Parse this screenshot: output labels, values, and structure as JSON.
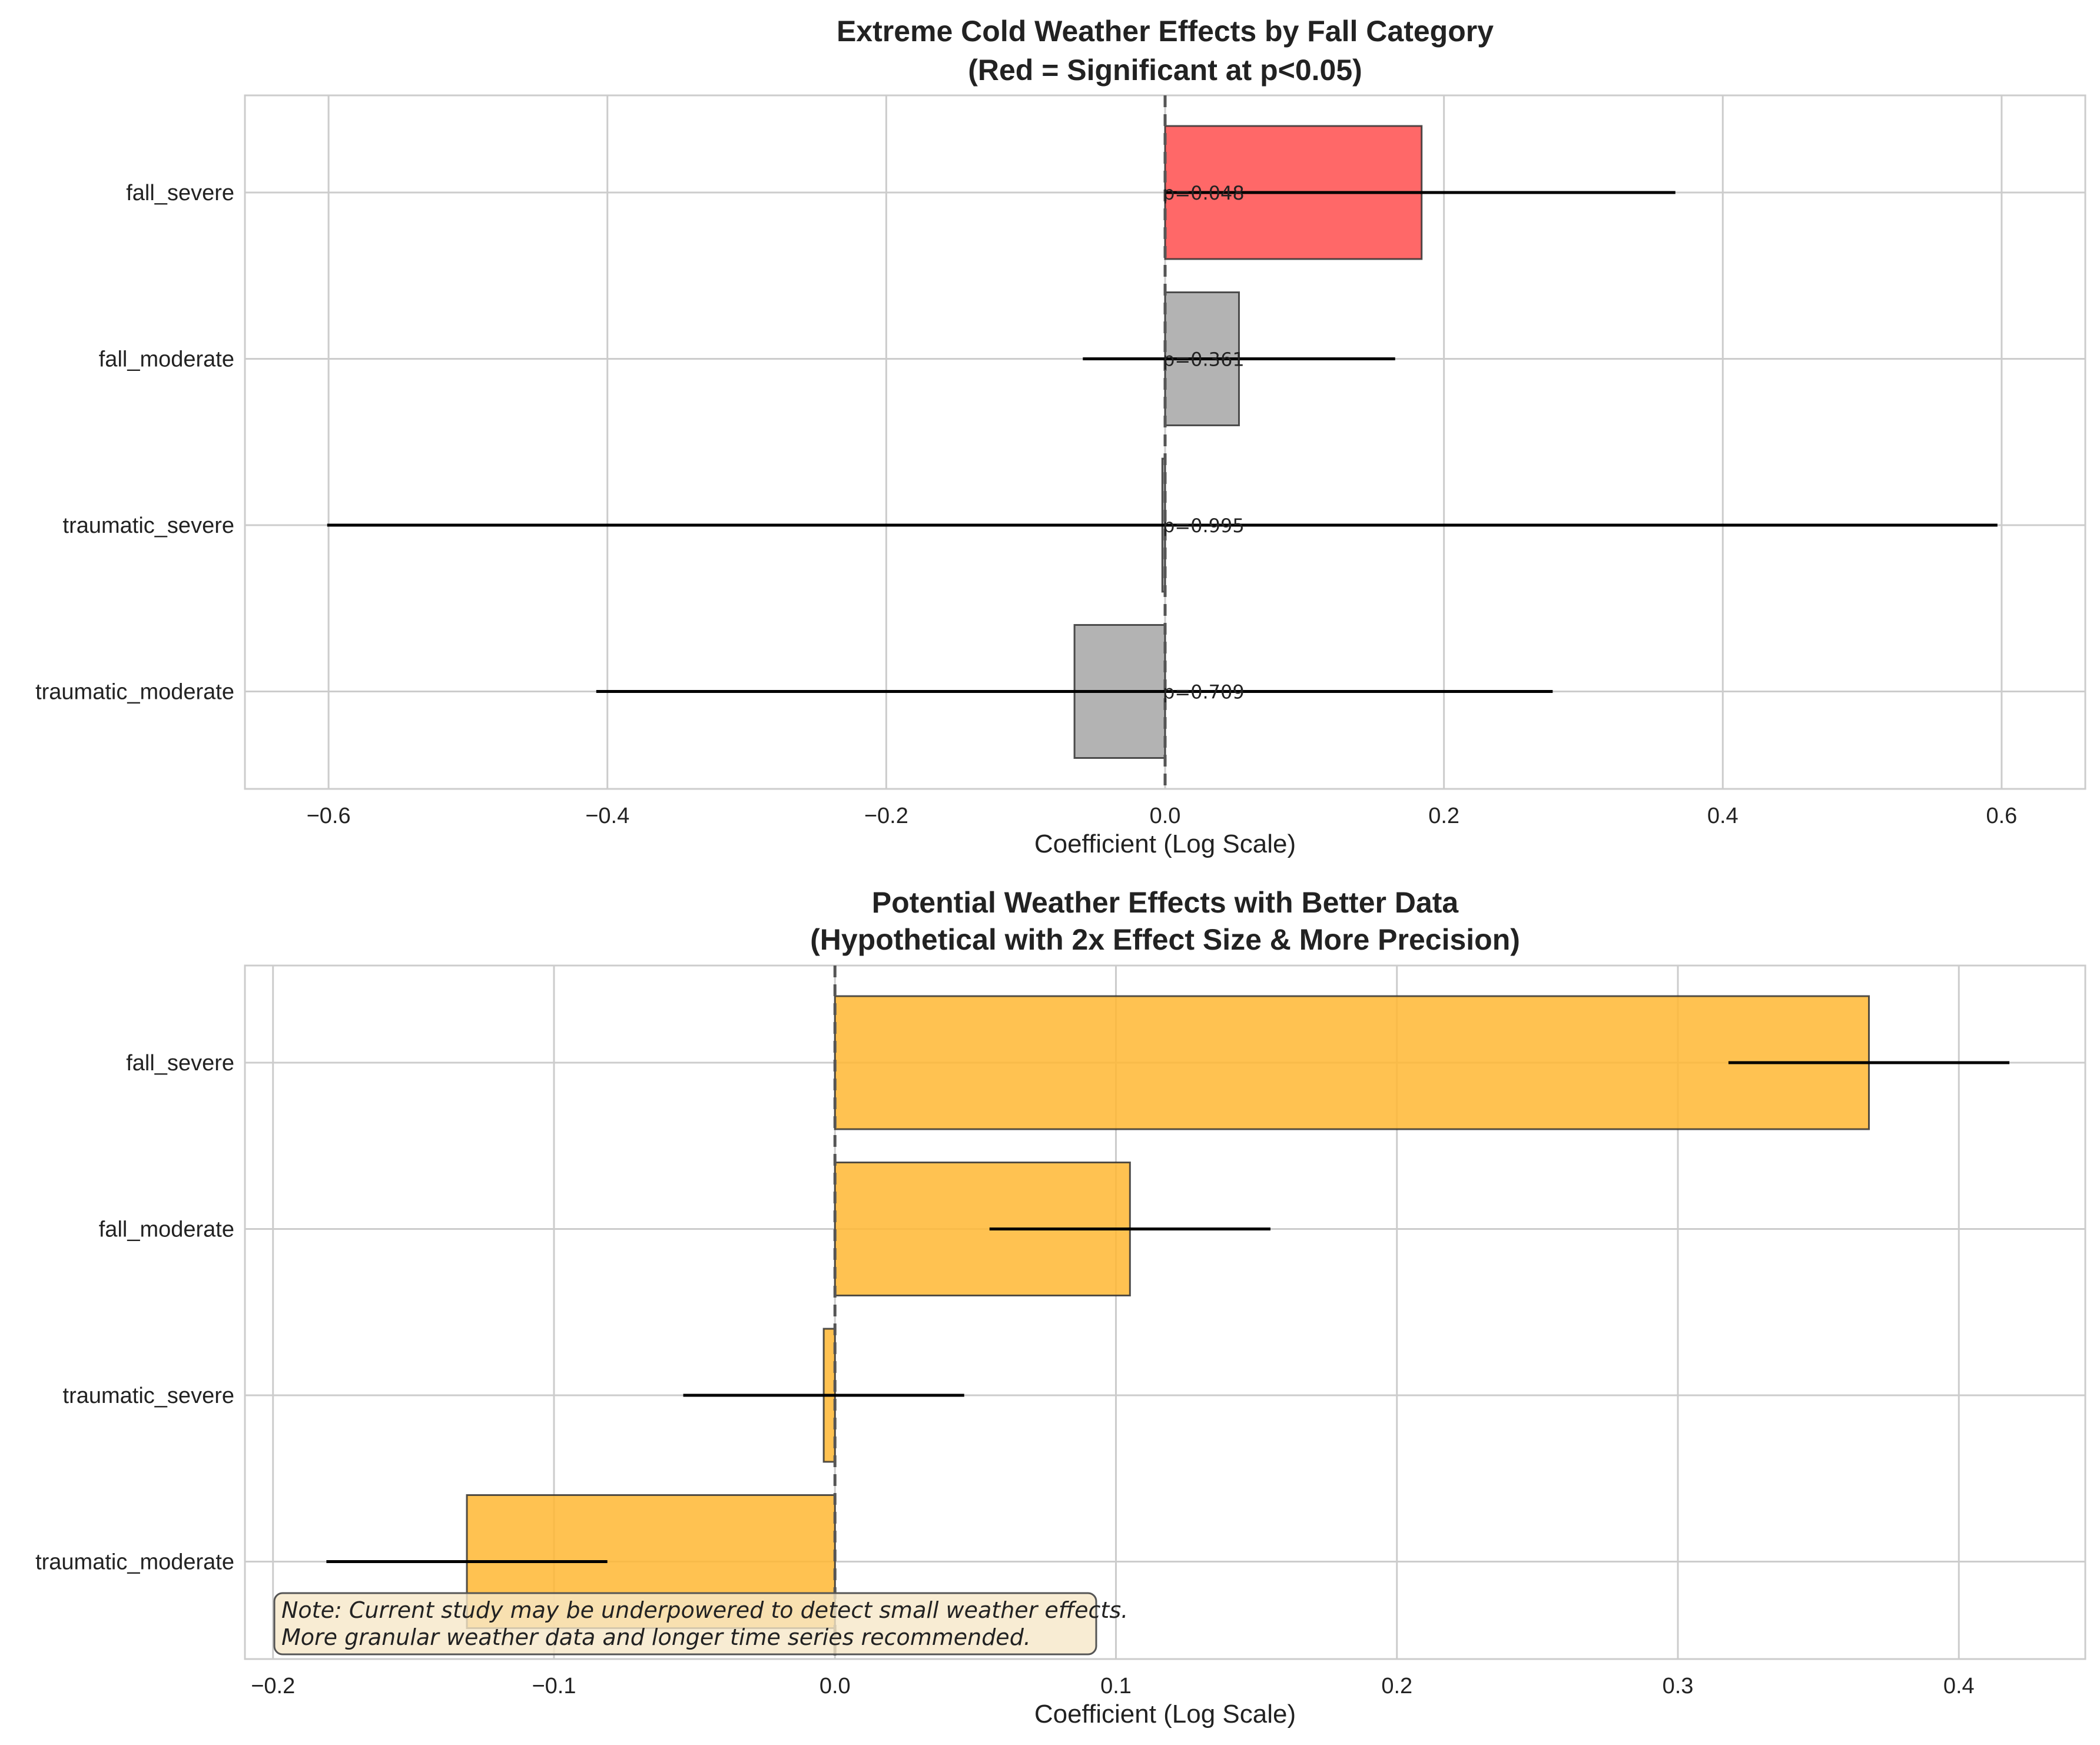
{
  "chart_data": [
    {
      "type": "bar",
      "orientation": "horizontal",
      "title": "Extreme Cold Weather Effects by Fall Category",
      "subtitle": "(Red = Significant at p<0.05)",
      "xlabel": "Coefficient (Log Scale)",
      "ylabel": "",
      "xlim": [
        -0.66,
        0.66
      ],
      "xticks": [
        -0.6,
        -0.4,
        -0.2,
        0.0,
        0.2,
        0.4,
        0.6
      ],
      "xtick_labels": [
        "−0.6",
        "−0.4",
        "−0.2",
        "0.0",
        "0.2",
        "0.4",
        "0.6"
      ],
      "grid": true,
      "reference_line": 0,
      "categories": [
        "fall_severe",
        "fall_moderate",
        "traumatic_severe",
        "traumatic_moderate"
      ],
      "values": [
        0.184,
        0.053,
        -0.002,
        -0.065
      ],
      "error_low": [
        0.0,
        -0.059,
        -0.601,
        -0.408
      ],
      "error_high": [
        0.366,
        0.165,
        0.597,
        0.278
      ],
      "p_labels": [
        "p=0.048",
        "p=0.361",
        "p=0.995",
        "p=0.709"
      ],
      "significant": [
        true,
        false,
        false,
        false
      ],
      "colors": {
        "significant": "#ff4d4d",
        "not_significant": "#a6a6a6"
      }
    },
    {
      "type": "bar",
      "orientation": "horizontal",
      "title": "Potential Weather Effects with Better Data",
      "subtitle": "(Hypothetical with 2x Effect Size & More Precision)",
      "xlabel": "Coefficient (Log Scale)",
      "ylabel": "",
      "xlim": [
        -0.21,
        0.445
      ],
      "xticks": [
        -0.2,
        -0.1,
        0.0,
        0.1,
        0.2,
        0.3,
        0.4
      ],
      "xtick_labels": [
        "−0.2",
        "−0.1",
        "0.0",
        "0.1",
        "0.2",
        "0.3",
        "0.4"
      ],
      "grid": true,
      "reference_line": 0,
      "categories": [
        "fall_severe",
        "fall_moderate",
        "traumatic_severe",
        "traumatic_moderate"
      ],
      "values": [
        0.368,
        0.105,
        -0.004,
        -0.131
      ],
      "error_low": [
        0.318,
        0.055,
        -0.054,
        -0.181
      ],
      "error_high": [
        0.418,
        0.155,
        0.046,
        -0.081
      ],
      "colors": {
        "bar": "#ffb732"
      },
      "note": [
        "Note: Current study may be underpowered to detect small weather effects.",
        "More granular weather data and longer time series recommended."
      ]
    }
  ]
}
